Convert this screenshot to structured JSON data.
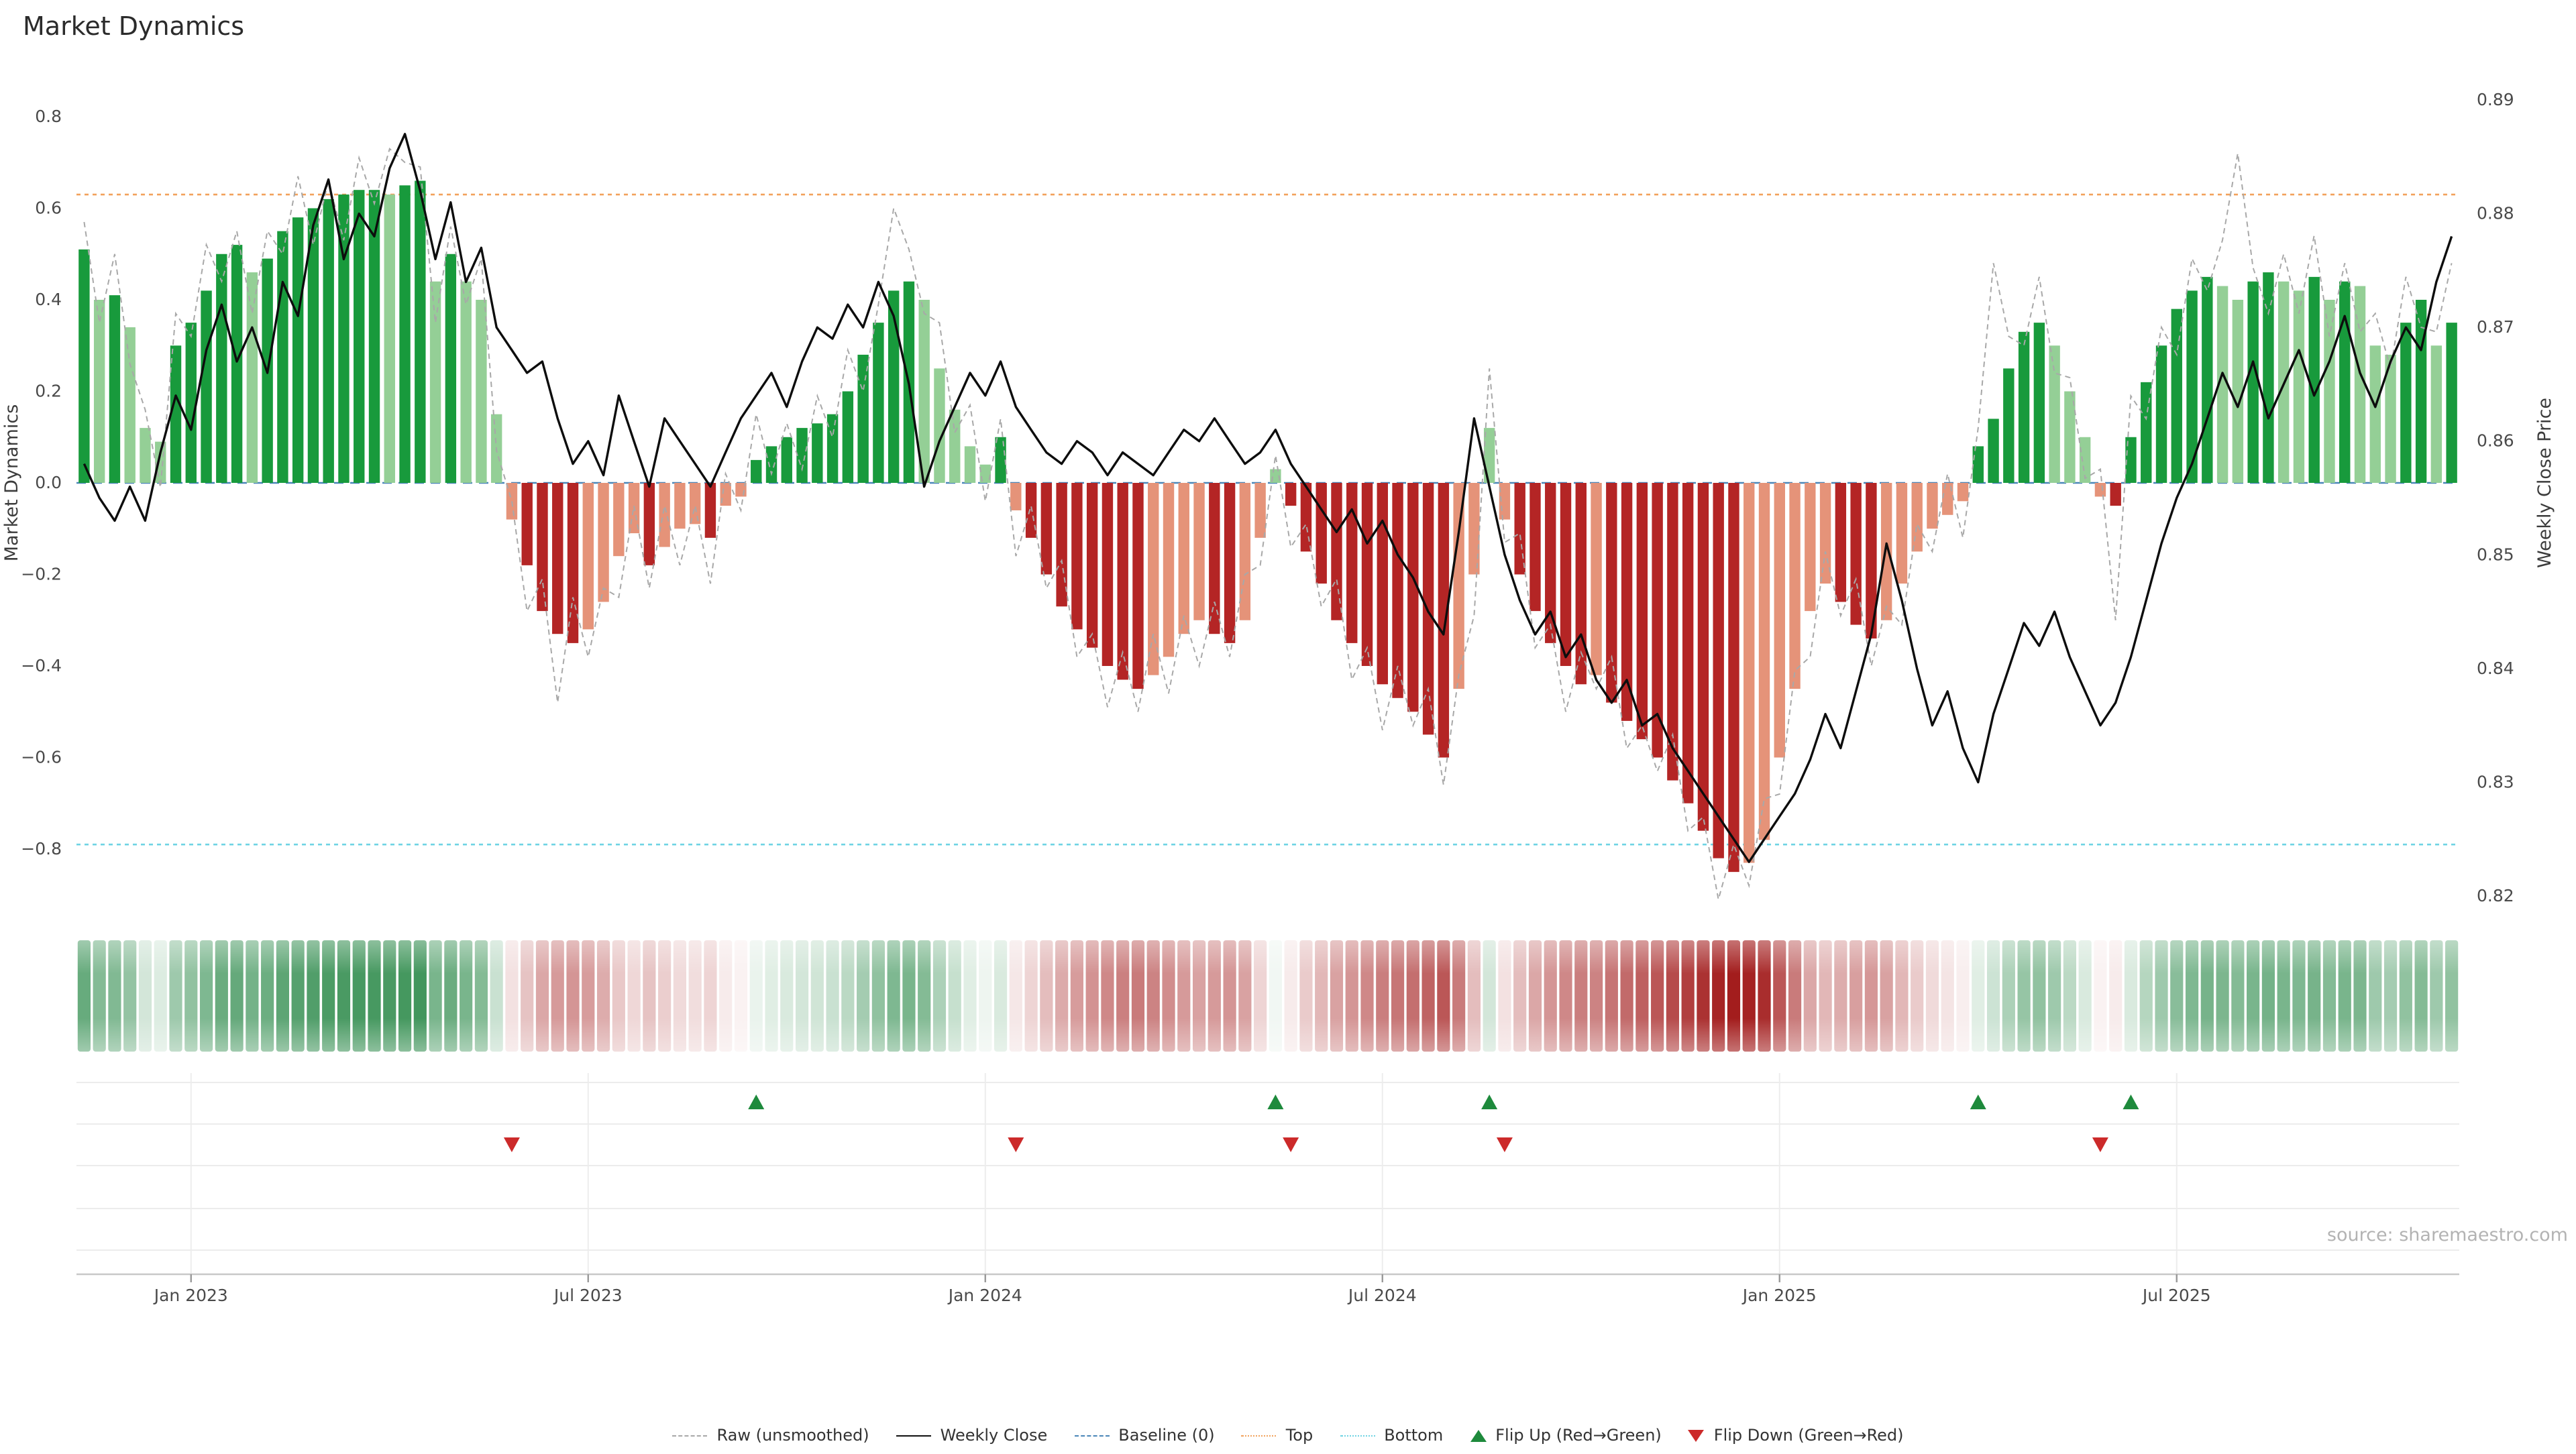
{
  "title": "Market Dynamics",
  "source": "source: sharemaestro.com",
  "left_axis": {
    "label": "Market Dynamics",
    "ticks": [
      {
        "v": 0.8,
        "label": "0.8"
      },
      {
        "v": 0.6,
        "label": "0.6"
      },
      {
        "v": 0.4,
        "label": "0.4"
      },
      {
        "v": 0.2,
        "label": "0.2"
      },
      {
        "v": 0.0,
        "label": "0.0"
      },
      {
        "v": -0.2,
        "label": "−0.2"
      },
      {
        "v": -0.4,
        "label": "−0.4"
      },
      {
        "v": -0.6,
        "label": "−0.6"
      },
      {
        "v": -0.8,
        "label": "−0.8"
      }
    ]
  },
  "right_axis": {
    "label": "Weekly Close Price",
    "ticks": [
      {
        "v": 0.89,
        "label": "0.89"
      },
      {
        "v": 0.88,
        "label": "0.88"
      },
      {
        "v": 0.87,
        "label": "0.87"
      },
      {
        "v": 0.86,
        "label": "0.86"
      },
      {
        "v": 0.85,
        "label": "0.85"
      },
      {
        "v": 0.84,
        "label": "0.84"
      },
      {
        "v": 0.83,
        "label": "0.83"
      },
      {
        "v": 0.82,
        "label": "0.82"
      }
    ]
  },
  "x_axis": {
    "ticks": [
      {
        "week": 7,
        "label": "Jan 2023"
      },
      {
        "week": 33,
        "label": "Jul 2023"
      },
      {
        "week": 59,
        "label": "Jan 2024"
      },
      {
        "week": 85,
        "label": "Jul 2024"
      },
      {
        "week": 111,
        "label": "Jan 2025"
      },
      {
        "week": 137,
        "label": "Jul 2025"
      }
    ]
  },
  "legend": {
    "items": [
      {
        "label": "Raw (unsmoothed)"
      },
      {
        "label": "Weekly Close"
      },
      {
        "label": "Baseline (0)"
      },
      {
        "label": "Top"
      },
      {
        "label": "Bottom"
      },
      {
        "label": "Flip Up (Red→Green)"
      },
      {
        "label": "Flip Down (Green→Red)"
      }
    ]
  },
  "colors": {
    "green_dark": "#189a3c",
    "green_light": "#94cf96",
    "red_dark": "#b42525",
    "red_light": "#e59379",
    "heat_green": "#157d36",
    "heat_red": "#a31d1d",
    "top_line": "#f2a25c",
    "bottom_line": "#6fd3e3",
    "baseline": "#4a86b8",
    "close_line": "#0d0d0d",
    "raw_line": "#a8a8a8",
    "flip_up": "#1e8a3c",
    "flip_down": "#cc2a2a"
  },
  "chart_data": {
    "type": "bar+line",
    "title": "Market Dynamics",
    "ylabel_left": "Market Dynamics",
    "ylabel_right": "Weekly Close Price",
    "ylim_left": [
      -0.9,
      0.9
    ],
    "ylim_right": [
      0.82,
      0.89
    ],
    "n_points": 156,
    "frequency": "weekly",
    "baseline": 0,
    "top_threshold": 0.63,
    "bottom_threshold": -0.79,
    "flip_up_weeks": [
      44,
      78,
      92,
      124,
      134
    ],
    "flip_down_weeks": [
      28,
      61,
      79,
      93,
      132
    ],
    "series": [
      {
        "name": "Market Dynamics (bars)",
        "axis": "left",
        "values": [
          0.51,
          0.4,
          0.41,
          0.34,
          0.12,
          0.09,
          0.3,
          0.35,
          0.42,
          0.5,
          0.52,
          0.46,
          0.49,
          0.55,
          0.58,
          0.6,
          0.62,
          0.63,
          0.64,
          0.64,
          0.63,
          0.65,
          0.66,
          0.44,
          0.5,
          0.44,
          0.4,
          0.15,
          -0.08,
          -0.18,
          -0.28,
          -0.33,
          -0.35,
          -0.32,
          -0.26,
          -0.16,
          -0.11,
          -0.18,
          -0.14,
          -0.1,
          -0.09,
          -0.12,
          -0.05,
          -0.03,
          0.05,
          0.08,
          0.1,
          0.12,
          0.13,
          0.15,
          0.2,
          0.28,
          0.35,
          0.42,
          0.44,
          0.4,
          0.25,
          0.16,
          0.08,
          0.04,
          0.1,
          -0.06,
          -0.12,
          -0.2,
          -0.27,
          -0.32,
          -0.36,
          -0.4,
          -0.43,
          -0.45,
          -0.42,
          -0.38,
          -0.33,
          -0.3,
          -0.33,
          -0.35,
          -0.3,
          -0.12,
          0.03,
          -0.05,
          -0.15,
          -0.22,
          -0.3,
          -0.35,
          -0.4,
          -0.44,
          -0.47,
          -0.5,
          -0.55,
          -0.6,
          -0.45,
          -0.2,
          0.12,
          -0.08,
          -0.2,
          -0.28,
          -0.35,
          -0.4,
          -0.44,
          -0.42,
          -0.48,
          -0.52,
          -0.56,
          -0.6,
          -0.65,
          -0.7,
          -0.76,
          -0.82,
          -0.85,
          -0.83,
          -0.78,
          -0.6,
          -0.45,
          -0.28,
          -0.22,
          -0.26,
          -0.31,
          -0.34,
          -0.3,
          -0.22,
          -0.15,
          -0.1,
          -0.07,
          -0.04,
          0.08,
          0.14,
          0.25,
          0.33,
          0.35,
          0.3,
          0.2,
          0.1,
          -0.03,
          -0.05,
          0.1,
          0.22,
          0.3,
          0.38,
          0.42,
          0.45,
          0.43,
          0.4,
          0.44,
          0.46,
          0.44,
          0.42,
          0.45,
          0.4,
          0.44,
          0.43,
          0.3,
          0.28,
          0.35,
          0.4,
          0.3,
          0.35
        ]
      },
      {
        "name": "Raw (unsmoothed)",
        "axis": "left",
        "values": [
          0.57,
          0.35,
          0.5,
          0.26,
          0.16,
          -0.01,
          0.37,
          0.32,
          0.52,
          0.44,
          0.55,
          0.37,
          0.55,
          0.5,
          0.67,
          0.52,
          0.66,
          0.53,
          0.71,
          0.61,
          0.73,
          0.7,
          0.69,
          0.35,
          0.56,
          0.39,
          0.49,
          0.07,
          -0.04,
          -0.28,
          -0.21,
          -0.48,
          -0.25,
          -0.38,
          -0.23,
          -0.25,
          -0.05,
          -0.23,
          -0.05,
          -0.18,
          -0.05,
          -0.22,
          0.02,
          -0.06,
          0.15,
          0.02,
          0.13,
          0.03,
          0.19,
          0.1,
          0.29,
          0.2,
          0.39,
          0.6,
          0.51,
          0.37,
          0.35,
          0.11,
          0.17,
          -0.04,
          0.14,
          -0.16,
          -0.05,
          -0.23,
          -0.17,
          -0.38,
          -0.33,
          -0.49,
          -0.37,
          -0.5,
          -0.33,
          -0.46,
          -0.29,
          -0.4,
          -0.26,
          -0.38,
          -0.2,
          -0.18,
          0.06,
          -0.14,
          -0.09,
          -0.27,
          -0.21,
          -0.43,
          -0.36,
          -0.54,
          -0.4,
          -0.53,
          -0.45,
          -0.66,
          -0.42,
          -0.29,
          0.25,
          -0.13,
          -0.11,
          -0.36,
          -0.31,
          -0.5,
          -0.37,
          -0.45,
          -0.38,
          -0.58,
          -0.53,
          -0.63,
          -0.55,
          -0.76,
          -0.73,
          -0.91,
          -0.79,
          -0.88,
          -0.69,
          -0.68,
          -0.41,
          -0.38,
          -0.15,
          -0.29,
          -0.21,
          -0.4,
          -0.27,
          -0.31,
          -0.09,
          -0.15,
          0.02,
          -0.12,
          0.12,
          0.48,
          0.32,
          0.3,
          0.45,
          0.24,
          0.23,
          0.01,
          0.03,
          -0.3,
          0.19,
          0.14,
          0.34,
          0.28,
          0.49,
          0.42,
          0.53,
          0.72,
          0.47,
          0.37,
          0.5,
          0.37,
          0.54,
          0.32,
          0.48,
          0.33,
          0.37,
          0.25,
          0.45,
          0.34,
          0.33,
          0.48
        ]
      },
      {
        "name": "Weekly Close",
        "axis": "right",
        "values": [
          0.858,
          0.855,
          0.853,
          0.856,
          0.853,
          0.859,
          0.864,
          0.861,
          0.868,
          0.872,
          0.867,
          0.87,
          0.866,
          0.874,
          0.871,
          0.879,
          0.883,
          0.876,
          0.88,
          0.878,
          0.884,
          0.887,
          0.882,
          0.876,
          0.881,
          0.874,
          0.877,
          0.87,
          0.868,
          0.866,
          0.867,
          0.862,
          0.858,
          0.86,
          0.857,
          0.864,
          0.86,
          0.856,
          0.862,
          0.86,
          0.858,
          0.856,
          0.859,
          0.862,
          0.864,
          0.866,
          0.863,
          0.867,
          0.87,
          0.869,
          0.872,
          0.87,
          0.874,
          0.871,
          0.865,
          0.856,
          0.86,
          0.863,
          0.866,
          0.864,
          0.867,
          0.863,
          0.861,
          0.859,
          0.858,
          0.86,
          0.859,
          0.857,
          0.859,
          0.858,
          0.857,
          0.859,
          0.861,
          0.86,
          0.862,
          0.86,
          0.858,
          0.859,
          0.861,
          0.858,
          0.856,
          0.854,
          0.852,
          0.854,
          0.851,
          0.853,
          0.85,
          0.848,
          0.845,
          0.843,
          0.852,
          0.862,
          0.856,
          0.85,
          0.846,
          0.843,
          0.845,
          0.841,
          0.843,
          0.839,
          0.837,
          0.839,
          0.835,
          0.836,
          0.833,
          0.831,
          0.829,
          0.827,
          0.825,
          0.823,
          0.825,
          0.827,
          0.829,
          0.832,
          0.836,
          0.833,
          0.838,
          0.843,
          0.851,
          0.846,
          0.84,
          0.835,
          0.838,
          0.833,
          0.83,
          0.836,
          0.84,
          0.844,
          0.842,
          0.845,
          0.841,
          0.838,
          0.835,
          0.837,
          0.841,
          0.846,
          0.851,
          0.855,
          0.858,
          0.862,
          0.866,
          0.863,
          0.867,
          0.862,
          0.865,
          0.868,
          0.864,
          0.867,
          0.871,
          0.866,
          0.863,
          0.867,
          0.87,
          0.868,
          0.874,
          0.878
        ]
      }
    ]
  }
}
